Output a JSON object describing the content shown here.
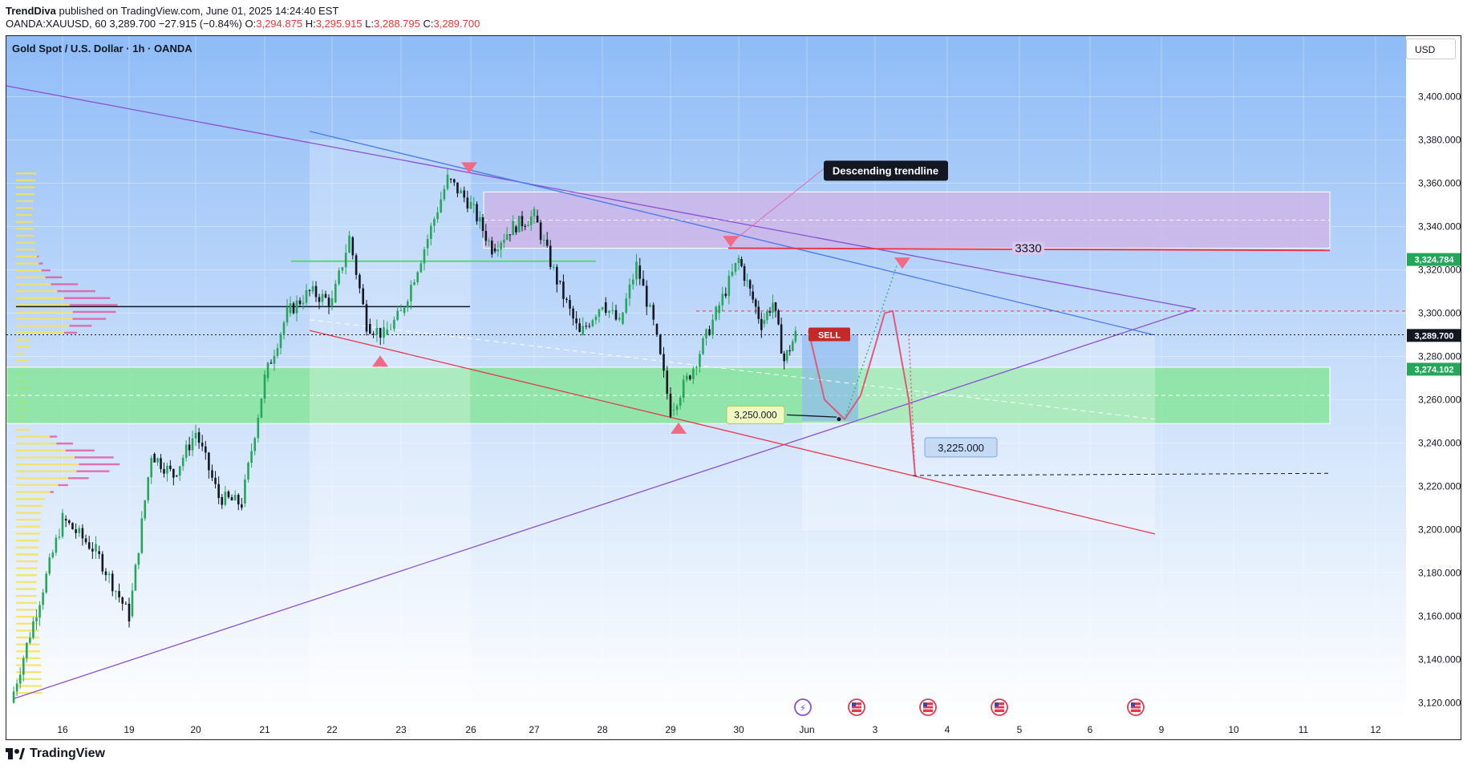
{
  "header": {
    "publisher": "TrendDiva",
    "published_text": "published on TradingView.com, June 01, 2025 14:24:40 EST",
    "ohlc_prefix": "OANDA:XAUUSD, 60",
    "last": "3,289.700",
    "change": "−27.915 (−0.84%)",
    "o_label": "O:",
    "o": "3,294.875",
    "h_label": "H:",
    "h": "3,295.915",
    "l_label": "L:",
    "l": "3,288.795",
    "c_label": "C:",
    "c": "3,289.700"
  },
  "symbol_title": "Gold Spot / U.S. Dollar · 1h · OANDA",
  "currency_button": "USD",
  "brand": "TradingView",
  "colors": {
    "bg_top": "#8fbcf7",
    "bg_bottom": "#ffffff",
    "up": "#26a65b",
    "down": "#131722",
    "resistance_zone": "#d1b3e6",
    "support_zone": "#7ee58f",
    "sell": "#c62828",
    "wedge_blue": "#4a78e8",
    "wedge_purple": "#8b4fd1",
    "red_line": "#e53950"
  },
  "chart_data": {
    "type": "candlestick",
    "title": "Gold Spot / U.S. Dollar · 1h · OANDA",
    "ylim": [
      3112,
      3428
    ],
    "x_ticks": [
      "16",
      "19",
      "20",
      "21",
      "22",
      "23",
      "26",
      "27",
      "28",
      "29",
      "30",
      "Jun",
      "3",
      "4",
      "5",
      "6",
      "9",
      "10",
      "11",
      "12"
    ],
    "y_ticks": [
      "3,400.000",
      "3,380.000",
      "3,360.000",
      "3,340.000",
      "3,320.000",
      "3,300.000",
      "3,280.000",
      "3,260.000",
      "3,240.000",
      "3,220.000",
      "3,200.000",
      "3,180.000",
      "3,160.000",
      "3,140.000",
      "3,120.000"
    ],
    "y_tick_values": [
      3400,
      3380,
      3360,
      3340,
      3320,
      3300,
      3280,
      3260,
      3240,
      3220,
      3200,
      3180,
      3160,
      3140,
      3120
    ],
    "price_tags": [
      {
        "value": 3324.784,
        "label": "3,324.784",
        "color": "#26a65b"
      },
      {
        "value": 3289.7,
        "label": "3,289.700",
        "color": "#131722"
      },
      {
        "value": 3274.102,
        "label": "3,274.102",
        "color": "#26a65b"
      }
    ],
    "close_path": [
      [
        "15",
        3120
      ],
      [
        "16",
        3205
      ],
      [
        "16",
        3190
      ],
      [
        "19",
        3160
      ],
      [
        "19",
        3235
      ],
      [
        "19",
        3225
      ],
      [
        "20",
        3245
      ],
      [
        "20",
        3215
      ],
      [
        "20",
        3212
      ],
      [
        "21",
        3270
      ],
      [
        "21",
        3300
      ],
      [
        "21",
        3310
      ],
      [
        "22",
        3305
      ],
      [
        "22",
        3335
      ],
      [
        "22",
        3295
      ],
      [
        "22",
        3290
      ],
      [
        "23",
        3300
      ],
      [
        "23",
        3330
      ],
      [
        "23",
        3362
      ],
      [
        "26",
        3350
      ],
      [
        "26",
        3330
      ],
      [
        "26",
        3340
      ],
      [
        "27",
        3345
      ],
      [
        "27",
        3315
      ],
      [
        "27",
        3290
      ],
      [
        "28",
        3305
      ],
      [
        "28",
        3295
      ],
      [
        "28",
        3322
      ],
      [
        "28",
        3295
      ],
      [
        "29",
        3255
      ],
      [
        "29",
        3275
      ],
      [
        "29",
        3300
      ],
      [
        "30",
        3325
      ],
      [
        "30",
        3310
      ],
      [
        "30",
        3295
      ],
      [
        "30",
        3305
      ],
      [
        "30",
        3278
      ],
      [
        "30",
        3290
      ]
    ],
    "annotations": {
      "resistance_level": "3330",
      "trendline_label": "Descending trendline",
      "sell_label": "SELL",
      "target_1": "3,250.000",
      "target_2": "3,225.000"
    },
    "zones": [
      {
        "name": "resistance",
        "from": 3330,
        "to": 3356
      },
      {
        "name": "support",
        "from": 3249,
        "to": 3275
      }
    ],
    "events_count": 5
  }
}
